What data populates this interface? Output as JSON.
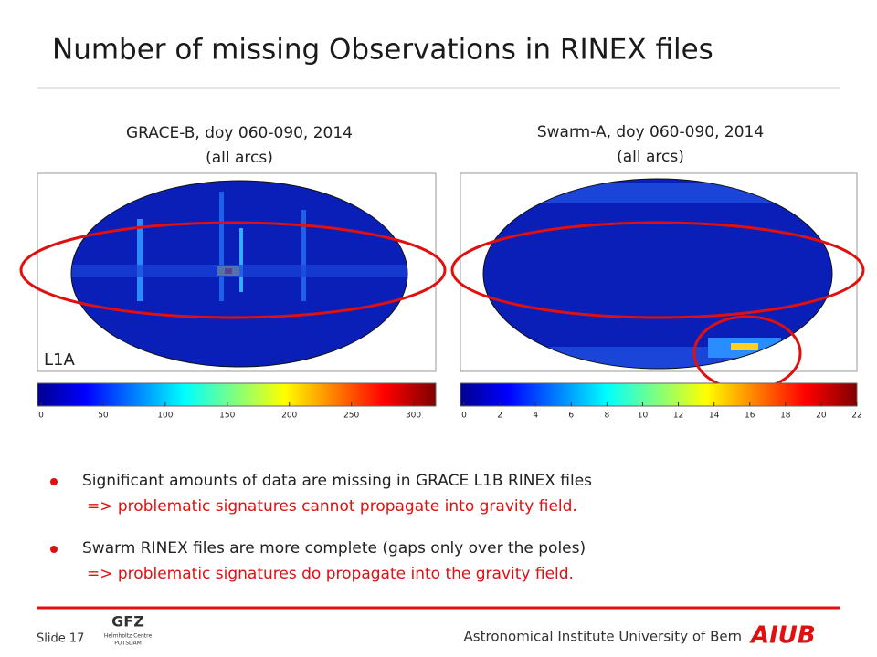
{
  "header": {
    "title": "Number of missing Observations in RINEX files"
  },
  "panels": [
    {
      "title": [
        "GRACE-B, doy 060-090, 2014",
        "(all arcs)"
      ],
      "label": "L1A",
      "colorbar": {
        "clim": [
          0,
          318
        ],
        "ticks": [
          0,
          50,
          100,
          150,
          200,
          250,
          300
        ]
      }
    },
    {
      "title": [
        "Swarm-A, doy 060-090, 2014",
        "(all arcs)"
      ],
      "colorbar": {
        "clim": [
          0,
          22
        ],
        "ticks": [
          0,
          2,
          4,
          6,
          8,
          10,
          12,
          14,
          16,
          18,
          20,
          22
        ]
      }
    }
  ],
  "bullets": [
    {
      "text": "Significant amounts of data are missing in GRACE L1B RINEX files",
      "note": "=> problematic signatures cannot propagate into gravity field."
    },
    {
      "text": "Swarm RINEX files are more complete (gaps only over the poles)",
      "note": "=> problematic signatures do propagate into the gravity field."
    }
  ],
  "footer": {
    "slide": "Slide 17",
    "logo": [
      "GFZ",
      "Helmholtz Centre",
      "POTSDAM"
    ],
    "institute": "Astronomical Institute University of Bern",
    "brand": "AIUB"
  }
}
